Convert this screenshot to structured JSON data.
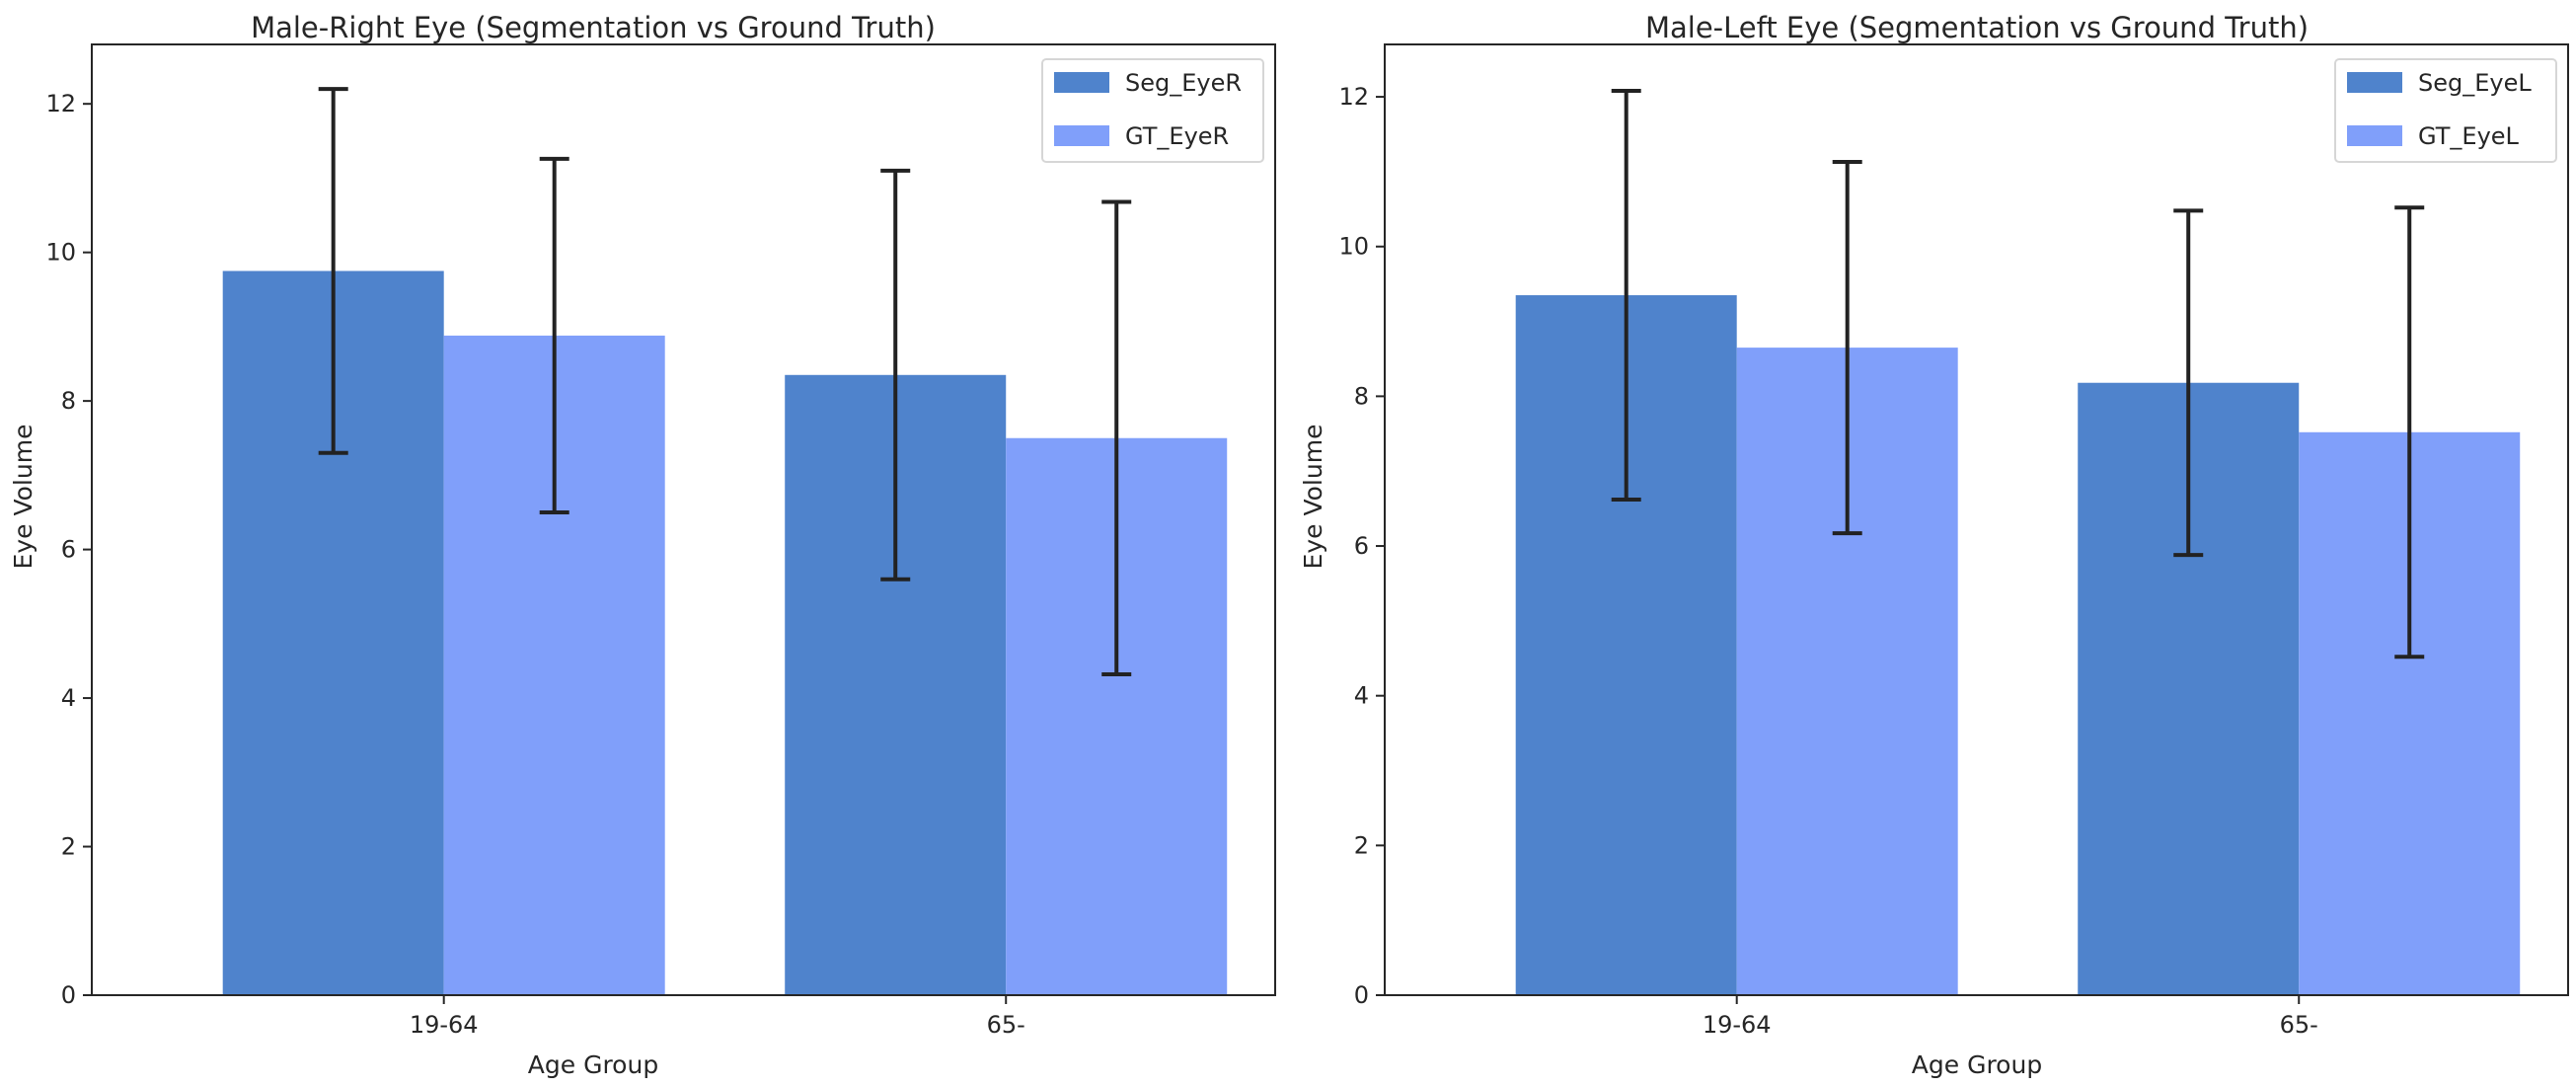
{
  "chart_data": [
    {
      "type": "bar",
      "title": "Male-Right Eye (Segmentation vs Ground Truth)",
      "xlabel": "Age Group",
      "ylabel": "Eye Volume",
      "categories": [
        "19-64",
        "65-"
      ],
      "ylim": [
        0,
        12.8
      ],
      "yticks": [
        0,
        2,
        4,
        6,
        8,
        10,
        12
      ],
      "legend_position": "top-right",
      "series": [
        {
          "name": "Seg_EyeR",
          "color": "#4f83cc",
          "values": [
            9.75,
            8.35
          ],
          "error": [
            2.45,
            2.75
          ]
        },
        {
          "name": "GT_EyeR",
          "color": "#809ffa",
          "values": [
            8.88,
            7.5
          ],
          "error": [
            2.38,
            3.18
          ]
        }
      ]
    },
    {
      "type": "bar",
      "title": "Male-Left Eye (Segmentation vs Ground Truth)",
      "xlabel": "Age Group",
      "ylabel": "Eye Volume",
      "categories": [
        "19-64",
        "65-"
      ],
      "ylim": [
        0,
        12.7
      ],
      "yticks": [
        0,
        2,
        4,
        6,
        8,
        10,
        12
      ],
      "legend_position": "top-right",
      "series": [
        {
          "name": "Seg_EyeL",
          "color": "#4f83cc",
          "values": [
            9.35,
            8.18
          ],
          "error": [
            2.73,
            2.3
          ]
        },
        {
          "name": "GT_EyeL",
          "color": "#809ffa",
          "values": [
            8.65,
            7.52
          ],
          "error": [
            2.48,
            3.0
          ]
        }
      ]
    }
  ]
}
